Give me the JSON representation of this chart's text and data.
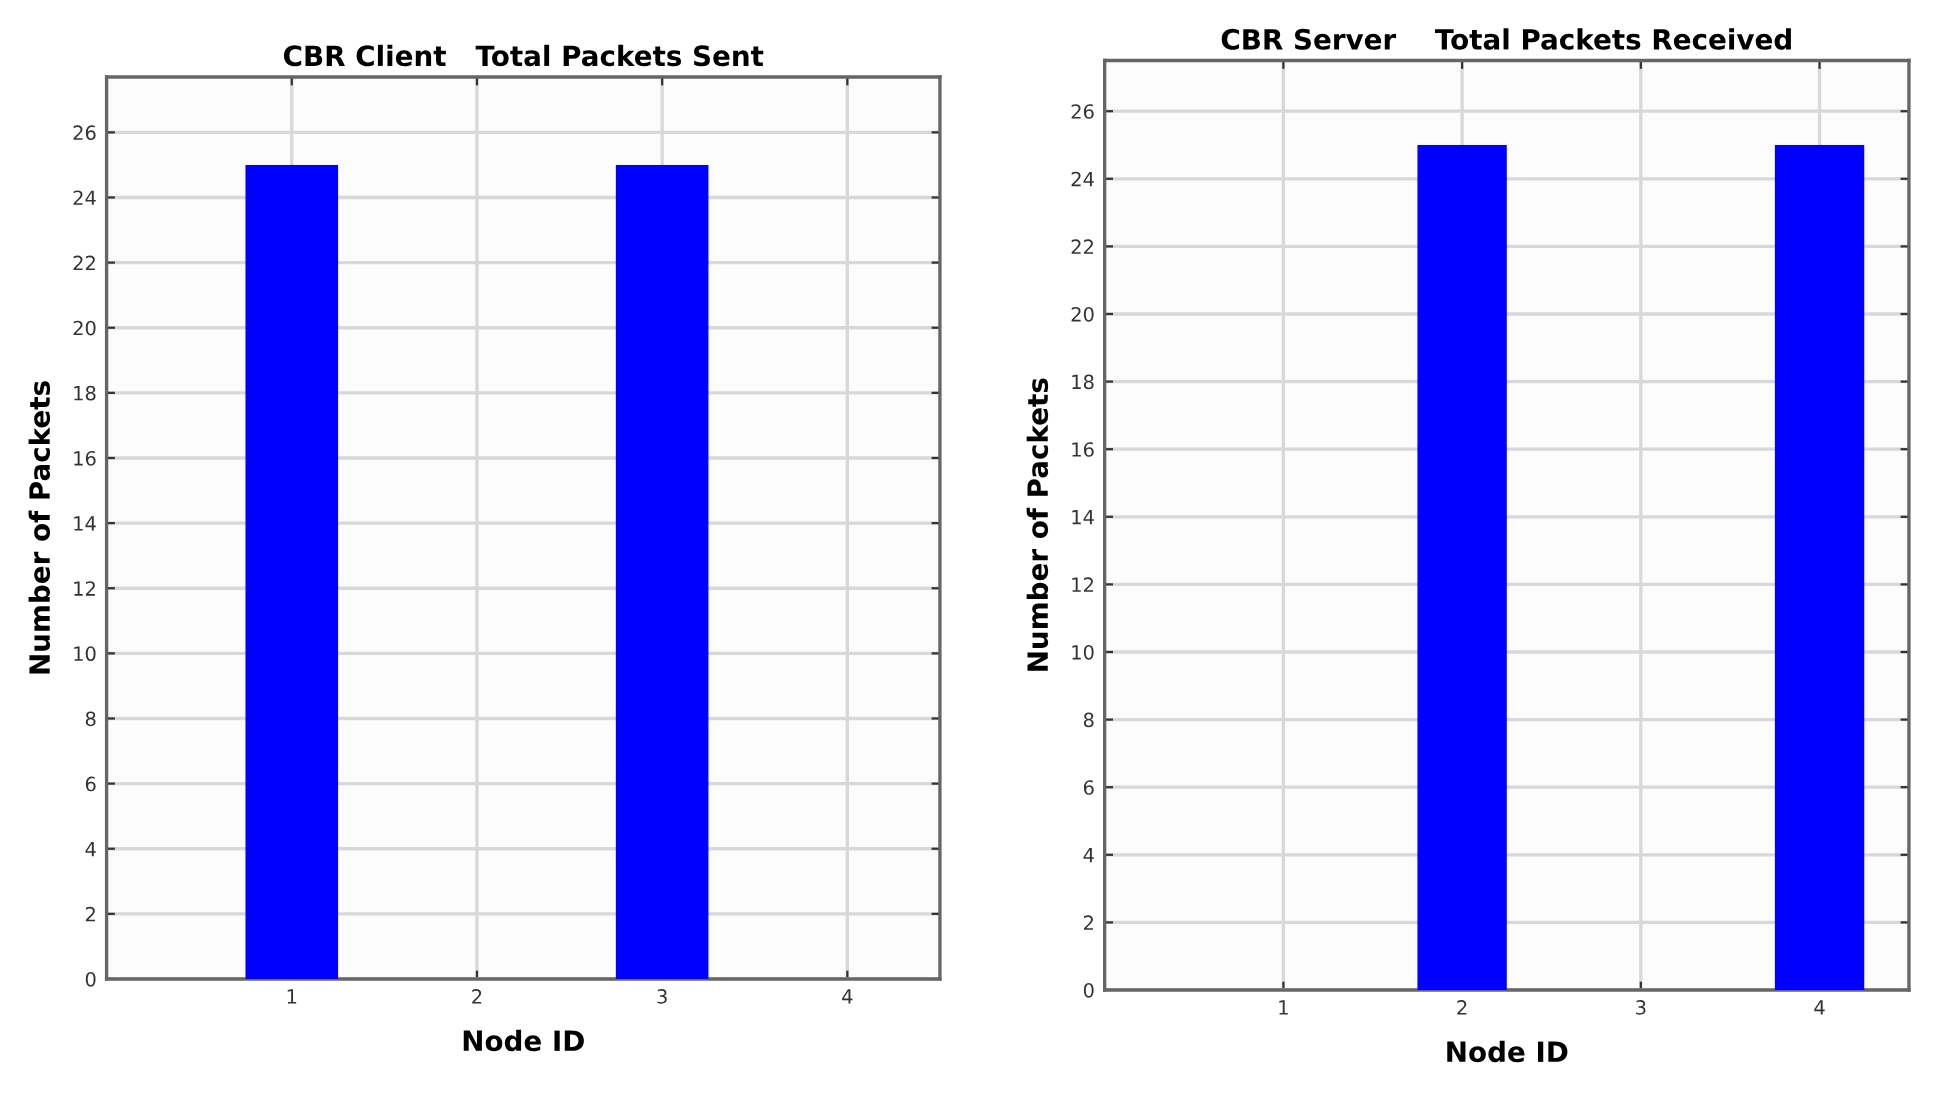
{
  "chart_data": [
    {
      "type": "bar",
      "title": "CBR Client   Total Packets Sent",
      "xlabel": "Node ID",
      "ylabel": "Number of Packets",
      "x": [
        1,
        3
      ],
      "values": [
        25,
        25
      ],
      "color": "#0000ff",
      "xlim": [
        0,
        4.5
      ],
      "xticks": [
        1,
        2,
        3,
        4
      ],
      "ylim": [
        0,
        27.7
      ],
      "yticks": [
        0,
        2,
        4,
        6,
        8,
        10,
        12,
        14,
        16,
        18,
        20,
        22,
        24,
        26
      ],
      "grid": true
    },
    {
      "type": "bar",
      "title": "CBR Server    Total Packets Received",
      "xlabel": "Node ID",
      "ylabel": "Number of Packets",
      "x": [
        2,
        4
      ],
      "values": [
        25,
        25
      ],
      "color": "#0000ff",
      "xlim": [
        0,
        4.5
      ],
      "xticks": [
        1,
        2,
        3,
        4
      ],
      "ylim": [
        0,
        27.5
      ],
      "yticks": [
        0,
        2,
        4,
        6,
        8,
        10,
        12,
        14,
        16,
        18,
        20,
        22,
        24,
        26
      ],
      "grid": true
    }
  ]
}
